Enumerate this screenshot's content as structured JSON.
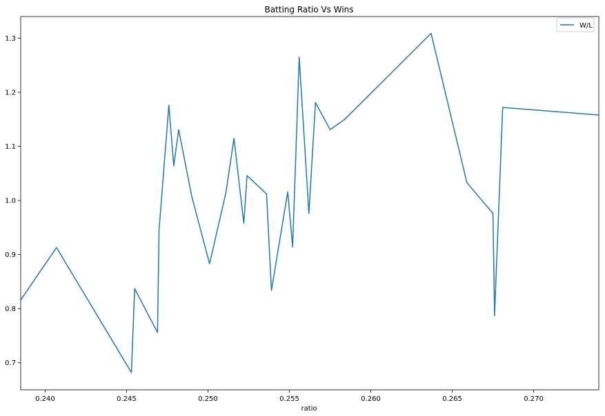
{
  "chart_data": {
    "type": "line",
    "title": "Batting Ratio Vs Wins",
    "xlabel": "ratio",
    "ylabel": "",
    "xlim": [
      0.2385,
      0.274
    ],
    "ylim": [
      0.65,
      1.34
    ],
    "xticks": [
      0.24,
      0.245,
      0.25,
      0.255,
      0.26,
      0.265,
      0.27
    ],
    "xtick_labels": [
      "0.240",
      "0.245",
      "0.250",
      "0.255",
      "0.260",
      "0.265",
      "0.270"
    ],
    "yticks": [
      0.7,
      0.8,
      0.9,
      1.0,
      1.1,
      1.2,
      1.3
    ],
    "ytick_labels": [
      "0.7",
      "0.8",
      "0.9",
      "1.0",
      "1.1",
      "1.2",
      "1.3"
    ],
    "legend_position": "top-right",
    "series": [
      {
        "name": "W/L",
        "color": "#1f77b4",
        "x": [
          0.2385,
          0.2407,
          0.2453,
          0.2455,
          0.2469,
          0.247,
          0.2476,
          0.2479,
          0.2482,
          0.249,
          0.2501,
          0.2511,
          0.2516,
          0.2522,
          0.2524,
          0.2536,
          0.2539,
          0.2549,
          0.2552,
          0.2556,
          0.2562,
          0.2566,
          0.2575,
          0.2584,
          0.2637,
          0.2659,
          0.2675,
          0.2676,
          0.2681,
          0.274
        ],
        "y": [
          0.816,
          0.913,
          0.682,
          0.837,
          0.756,
          0.946,
          1.176,
          1.064,
          1.131,
          1.008,
          0.883,
          1.014,
          1.115,
          0.958,
          1.046,
          1.012,
          0.834,
          1.016,
          0.914,
          1.265,
          0.976,
          1.181,
          1.131,
          1.15,
          1.309,
          1.033,
          0.976,
          0.787,
          1.172,
          1.158
        ]
      }
    ]
  }
}
